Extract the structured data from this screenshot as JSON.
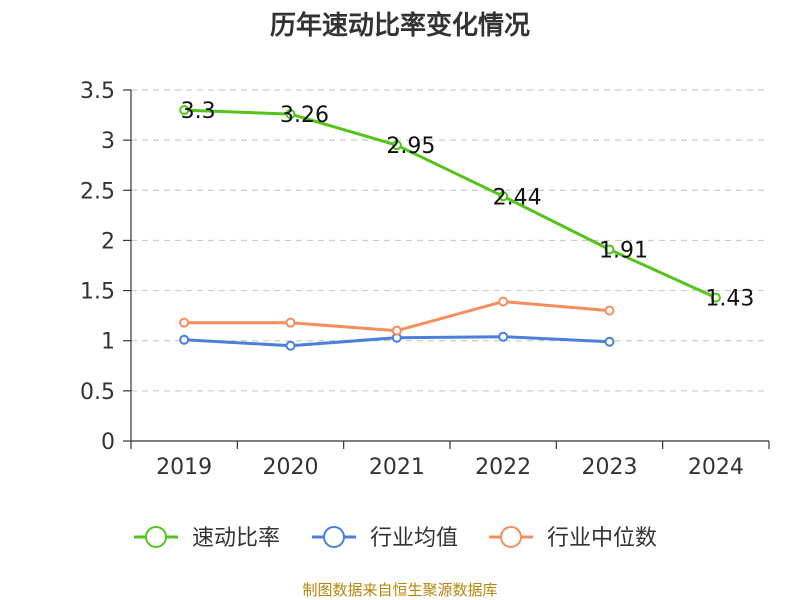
{
  "chart_data": {
    "type": "line",
    "title": "历年速动比率变化情况",
    "categories": [
      "2019",
      "2020",
      "2021",
      "2022",
      "2023",
      "2024"
    ],
    "yticks": [
      "0",
      "0.5",
      "1",
      "1.5",
      "2",
      "2.5",
      "3",
      "3.5"
    ],
    "ylim": [
      0,
      3.5
    ],
    "grid": true,
    "legend_position": "bottom",
    "series": [
      {
        "name": "速动比率",
        "color": "#52c41a",
        "values": [
          3.3,
          3.26,
          2.95,
          2.44,
          1.91,
          1.43
        ],
        "labels": [
          "3.3",
          "3.26",
          "2.95",
          "2.44",
          "1.91",
          "1.43"
        ]
      },
      {
        "name": "行业均值",
        "color": "#4a7fdc",
        "values": [
          1.01,
          0.95,
          1.03,
          1.04,
          0.99,
          null
        ]
      },
      {
        "name": "行业中位数",
        "color": "#f58d5c",
        "values": [
          1.18,
          1.18,
          1.1,
          1.39,
          1.3,
          null
        ]
      }
    ]
  },
  "source": "制图数据来自恒生聚源数据库"
}
